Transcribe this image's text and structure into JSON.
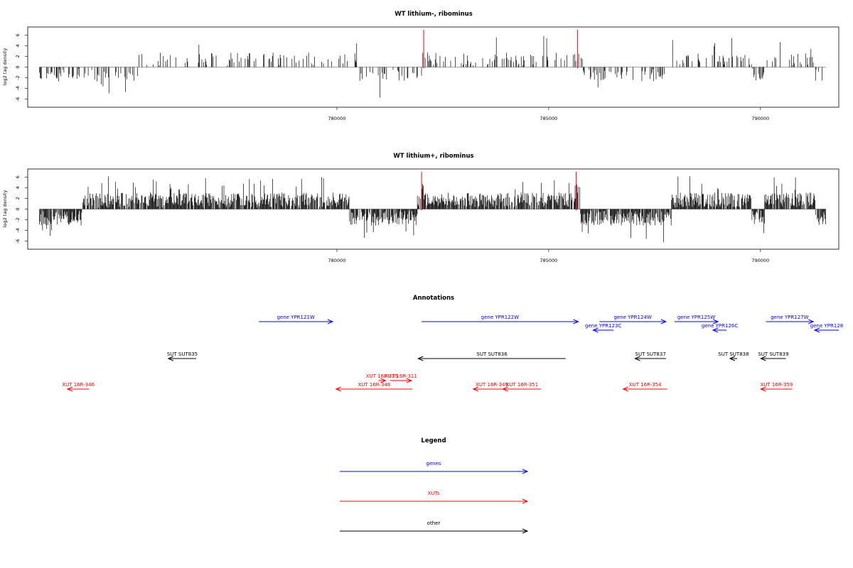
{
  "chart_data": [
    {
      "type": "bar",
      "title": "WT lithium-, ribominus",
      "ylabel": "log2 tag density",
      "xlim": [
        772700,
        791850
      ],
      "ylim": [
        -7.5,
        7.5
      ],
      "yticks": [
        -6,
        -4,
        -2,
        0,
        2,
        4,
        6
      ],
      "xticks": [
        780000,
        785000,
        790000
      ],
      "marker_lines": [
        782050,
        785680
      ],
      "marker_color": "#ff0000",
      "density": 0.28,
      "amplitude": 2.4,
      "seed": 11,
      "bins": [
        [
          772980,
          775300,
          -1
        ],
        [
          775300,
          780500,
          1
        ],
        [
          780500,
          782000,
          -1
        ],
        [
          782000,
          785800,
          1
        ],
        [
          785800,
          787800,
          -1
        ],
        [
          787800,
          789800,
          1
        ],
        [
          789800,
          790100,
          -1
        ],
        [
          790100,
          791300,
          1
        ],
        [
          791300,
          791550,
          -1
        ]
      ]
    },
    {
      "type": "bar",
      "title": "WT lithium+, ribominus",
      "ylabel": "log2 tag density",
      "xlim": [
        772700,
        791850
      ],
      "ylim": [
        -7.5,
        7.5
      ],
      "yticks": [
        -6,
        -4,
        -2,
        0,
        2,
        4,
        6
      ],
      "xticks": [
        780000,
        785000,
        790000
      ],
      "marker_lines": [
        782000,
        785650
      ],
      "marker_color": "#ff0000",
      "density": 0.85,
      "amplitude": 2.8,
      "seed": 29,
      "bins": [
        [
          772980,
          774000,
          -1
        ],
        [
          774000,
          780300,
          1
        ],
        [
          780300,
          781900,
          -1
        ],
        [
          781900,
          785750,
          1
        ],
        [
          785750,
          787900,
          -1
        ],
        [
          787900,
          789800,
          1
        ],
        [
          789800,
          790100,
          -1
        ],
        [
          790100,
          791300,
          1
        ],
        [
          791300,
          791550,
          -1
        ]
      ]
    }
  ],
  "annotations": {
    "title": "Annotations",
    "items": [
      {
        "label": "gene YPR121W",
        "start": 778160,
        "end": 779900,
        "row": 0,
        "color": "#0000ff"
      },
      {
        "label": "gene YPR122W",
        "start": 782000,
        "end": 785700,
        "row": 0,
        "color": "#0000ff"
      },
      {
        "label": "gene YPR124W",
        "start": 786200,
        "end": 787770,
        "row": 0,
        "color": "#0000ff"
      },
      {
        "label": "gene YPR123C",
        "start": 786530,
        "end": 786050,
        "row": 1,
        "color": "#0000ff"
      },
      {
        "label": "gene YPR125W",
        "start": 787970,
        "end": 789000,
        "row": 0,
        "color": "#0000ff"
      },
      {
        "label": "gene YPR126C",
        "start": 789200,
        "end": 788880,
        "row": 1,
        "color": "#0000ff"
      },
      {
        "label": "gene YPR127W",
        "start": 790130,
        "end": 791250,
        "row": 0,
        "color": "#0000ff"
      },
      {
        "label": "gene YPR128",
        "start": 791850,
        "end": 791280,
        "row": 1,
        "color": "#0000ff"
      },
      {
        "label": "SUT SUT835",
        "start": 776680,
        "end": 776020,
        "row": 3,
        "color": "#000000"
      },
      {
        "label": "SUT SUT836",
        "start": 785400,
        "end": 781920,
        "row": 3,
        "color": "#000000"
      },
      {
        "label": "SUT SUT837",
        "start": 787770,
        "end": 787040,
        "row": 3,
        "color": "#000000"
      },
      {
        "label": "SUT SUT838",
        "start": 789450,
        "end": 789280,
        "row": 3,
        "color": "#000000"
      },
      {
        "label": "SUT SUT839",
        "start": 790600,
        "end": 790010,
        "row": 3,
        "color": "#000000"
      },
      {
        "label": "XUT 16R-346",
        "start": 774150,
        "end": 773640,
        "row": 5,
        "color": "#ff0000"
      },
      {
        "label": "XUT 16R-348",
        "start": 781780,
        "end": 779980,
        "row": 5,
        "color": "#ff0000"
      },
      {
        "label": "XUT 16R-311",
        "start": 781260,
        "end": 781760,
        "row": 4,
        "color": "#ff0000"
      },
      {
        "label": "XUT 16F-335",
        "start": 780980,
        "end": 781150,
        "row": 4,
        "color": "#ff0000"
      },
      {
        "label": "XUT 16R-349",
        "start": 784100,
        "end": 783220,
        "row": 5,
        "color": "#ff0000"
      },
      {
        "label": "XUT 16R-351",
        "start": 784820,
        "end": 783920,
        "row": 5,
        "color": "#ff0000"
      },
      {
        "label": "XUT 16R-354",
        "start": 787800,
        "end": 786760,
        "row": 5,
        "color": "#ff0000"
      },
      {
        "label": "XUT 16R-359",
        "start": 790750,
        "end": 790010,
        "row": 5,
        "color": "#ff0000"
      }
    ]
  },
  "legend": {
    "title": "Legend",
    "items": [
      {
        "label": "genes",
        "color": "#0000ff"
      },
      {
        "label": "XUTs",
        "color": "#ff0000"
      },
      {
        "label": "other",
        "color": "#000000"
      }
    ]
  }
}
